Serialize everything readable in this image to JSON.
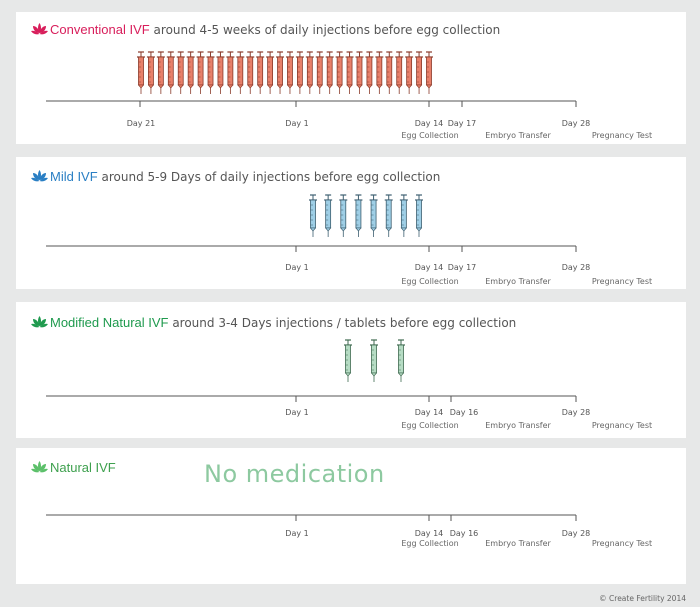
{
  "panels": [
    {
      "highlight": "Conventional IVF",
      "description": " around 4-5 weeks of daily injections before egg collection",
      "color": "#d81e5b",
      "syringe_fill": "#e8806a",
      "syringe_stroke": "#8a3a2a",
      "syringe_count": 30,
      "medication_note": "",
      "day_labels": [
        "Day 21",
        "Day 1",
        "Day 14",
        "Day 17",
        "Day 28"
      ],
      "events": [
        "Egg Collection",
        "Embryo Transfer",
        "Pregnancy Test"
      ]
    },
    {
      "highlight": "Mild IVF",
      "description": " around  5-9 Days of daily injections before egg collection",
      "color": "#2a7fc4",
      "syringe_fill": "#9fcfe6",
      "syringe_stroke": "#3d5f70",
      "syringe_count": 8,
      "medication_note": "",
      "day_labels": [
        "Day 1",
        "Day 14",
        "Day 17",
        "Day 28"
      ],
      "events": [
        "Egg Collection",
        "Embryo Transfer",
        "Pregnancy Test"
      ]
    },
    {
      "highlight": "Modified Natural IVF",
      "description": " around 3-4 Days injections / tablets before egg collection",
      "color": "#1f9a4e",
      "syringe_fill": "#b6dcc4",
      "syringe_stroke": "#3f6a50",
      "syringe_count": 3,
      "medication_note": "",
      "day_labels": [
        "Day 1",
        "Day 14",
        "Day 16",
        "Day 28"
      ],
      "events": [
        "Egg Collection",
        "Embryo Transfer",
        "Pregnancy Test"
      ]
    },
    {
      "highlight": "Natural IVF",
      "description": "",
      "color": "#5cc06a",
      "syringe_fill": "",
      "syringe_stroke": "",
      "syringe_count": 0,
      "medication_note": "No medication",
      "day_labels": [
        "Day 1",
        "Day 14",
        "Day 16",
        "Day 28"
      ],
      "events": [
        "Egg Collection",
        "Embryo Transfer",
        "Pregnancy Test"
      ]
    }
  ],
  "copyright": "© Create Fertility 2014"
}
